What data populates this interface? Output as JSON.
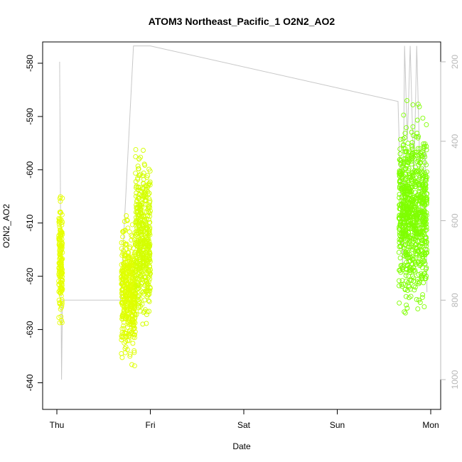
{
  "chart_data": {
    "type": "scatter",
    "title": "ATOM3 Northeast_Pacific_1 O2N2_AO2",
    "xlabel": "Date",
    "ylabel": "O2N2_AO2",
    "x_type": "time",
    "xlim": [
      "Thu 00:00",
      "Mon 04:00"
    ],
    "x_ticks": [
      "Thu",
      "Fri",
      "Sat",
      "Sun",
      "Mon"
    ],
    "ylim": [
      -645,
      -576
    ],
    "y_ticks": [
      -640,
      -630,
      -620,
      -610,
      -600,
      -590,
      -580
    ],
    "y2_label": "",
    "y2_ticks": [
      200,
      400,
      600,
      800,
      1000
    ],
    "y2_reversed": true,
    "y2_color": "#b8b8b8",
    "grid": false,
    "legend": "none",
    "series": [
      {
        "role": "points",
        "marker": "open-circle",
        "color_scale": [
          "#f2ff00",
          "#dfff00",
          "#7fff00"
        ],
        "segments": [
          {
            "day": "Thu",
            "x_start": 0.02,
            "x_end": 0.06,
            "y_center": -617,
            "y_min": -638,
            "y_max": -599,
            "color": "#e6ff00"
          },
          {
            "day": "Thu",
            "x_start": 0.69,
            "x_end": 0.84,
            "y_center": -623,
            "y_min": -644.5,
            "y_max": -603,
            "color": "#dfff00"
          },
          {
            "day": "Thu-Fri",
            "x_start": 0.84,
            "x_end": 1.0,
            "y_center": -613,
            "y_min": -637,
            "y_max": -585,
            "color": "#d4ff00"
          },
          {
            "day": "Sun-Mon",
            "x_start": 3.66,
            "x_end": 3.96,
            "y_center": -608,
            "y_min": -634,
            "y_max": -579,
            "color": "#7fff00"
          }
        ]
      },
      {
        "role": "line",
        "name": "",
        "color": "#c8c8c8",
        "axis": "right",
        "points": [
          {
            "x": 0.03,
            "y": 200
          },
          {
            "x": 0.05,
            "y": 1000
          },
          {
            "x": 0.06,
            "y": 800
          },
          {
            "x": 0.68,
            "y": 800
          },
          {
            "x": 0.82,
            "y": 160
          },
          {
            "x": 1.0,
            "y": 160
          },
          {
            "x": 3.65,
            "y": 300
          },
          {
            "x": 3.7,
            "y": 720
          },
          {
            "x": 3.72,
            "y": 160
          },
          {
            "x": 3.75,
            "y": 400
          },
          {
            "x": 3.78,
            "y": 160
          },
          {
            "x": 3.82,
            "y": 500
          },
          {
            "x": 3.85,
            "y": 160
          },
          {
            "x": 3.9,
            "y": 620
          },
          {
            "x": 3.94,
            "y": 400
          },
          {
            "x": 3.96,
            "y": 780
          }
        ]
      }
    ]
  }
}
